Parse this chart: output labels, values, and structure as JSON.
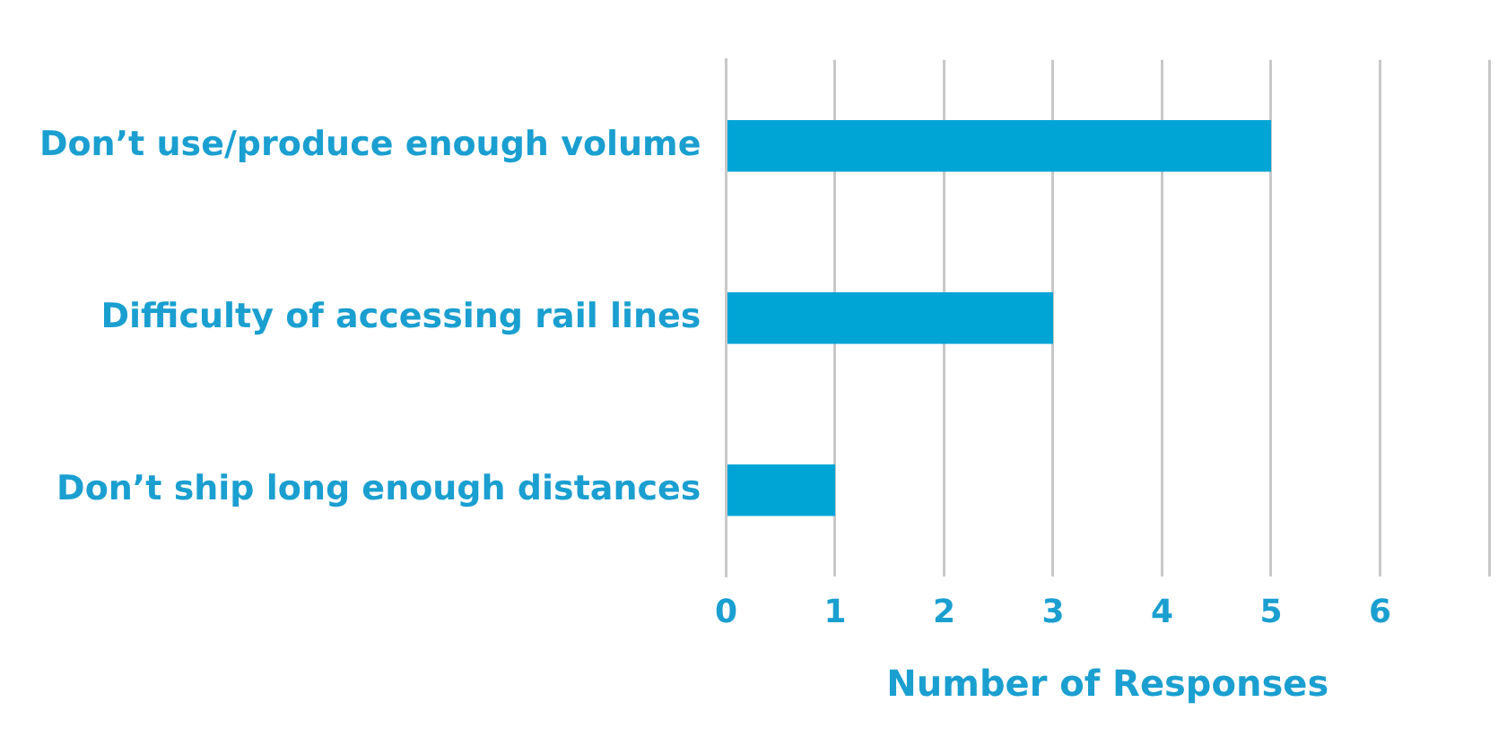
{
  "chart_data": {
    "type": "bar",
    "orientation": "horizontal",
    "xlabel": "Number of Responses",
    "categories": [
      "Don’t use/produce enough volume",
      "Difficulty of accessing rail lines",
      "Don’t ship long enough distances"
    ],
    "values": [
      5,
      3,
      1
    ],
    "color": "#00a5d6",
    "xlim": [
      0,
      7
    ],
    "xticks": [
      0,
      1,
      2,
      3,
      4,
      5,
      6,
      {
        "value": 7,
        "label": null
      }
    ],
    "grid": "x",
    "legend": false
  }
}
